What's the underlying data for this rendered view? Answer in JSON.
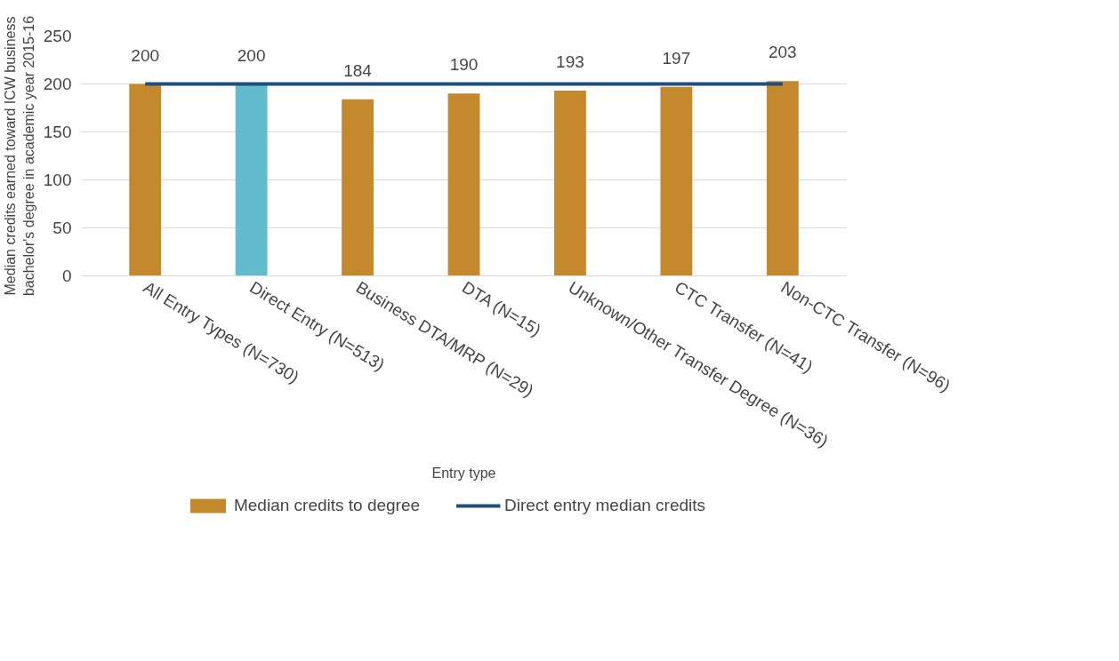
{
  "chart_data": {
    "type": "bar",
    "xlabel": "Entry type",
    "ylabel": "Median credits earned toward ICW business\nbachelor's degree in academic year 2015-16",
    "categories": [
      "All Entry Types (N=730)",
      "Direct Entry (N=513)",
      "Business DTA/MRP (N=29)",
      "DTA (N=15)",
      "Unknown/Other Transfer Degree (N=36)",
      "CTC Transfer (N=41)",
      "Non-CTC Transfer (N=96)"
    ],
    "series": [
      {
        "name": "Median credits to degree",
        "color": "#c5892d",
        "colors": [
          "#c5892d",
          "#63bbce",
          "#c5892d",
          "#c5892d",
          "#c5892d",
          "#c5892d",
          "#c5892d"
        ],
        "values": [
          200,
          200,
          184,
          190,
          193,
          197,
          203
        ],
        "value_labels": [
          "200",
          "200",
          "184",
          "190",
          "193",
          "197",
          "203"
        ]
      },
      {
        "name": "Direct entry median credits",
        "type": "line",
        "color": "#1f4e79",
        "values": [
          200,
          200,
          200,
          200,
          200,
          200,
          200
        ]
      }
    ],
    "ylim": [
      0,
      250
    ],
    "yticks": [
      0,
      50,
      100,
      150,
      200,
      250
    ],
    "grid": "y",
    "legend": "bottom"
  }
}
